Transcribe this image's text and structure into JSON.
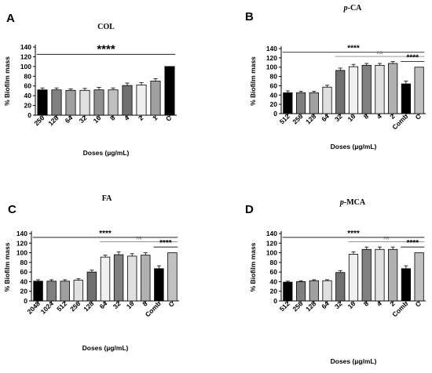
{
  "chart_data": [
    {
      "panel": "A",
      "type": "bar",
      "title": "COL",
      "xlabel": "Doses (µg/mL)",
      "ylabel": "% Biofilm mass",
      "ylim": [
        0,
        140
      ],
      "yticks": [
        "0",
        "20",
        "40",
        "60",
        "80",
        "100",
        "120",
        "140"
      ],
      "categories": [
        "256",
        "128",
        "64",
        "32",
        "16",
        "8",
        "4",
        "2",
        "1",
        "C"
      ],
      "values": [
        52,
        52,
        51,
        51,
        52,
        52,
        61,
        62,
        70,
        100
      ],
      "errors": [
        4,
        4,
        3,
        4,
        5,
        4,
        5,
        5,
        5,
        0
      ],
      "colors": [
        "#000000",
        "#808080",
        "#a0a0a0",
        "#e0e0e0",
        "#909090",
        "#c0c0c0",
        "#707070",
        "#f0f0f0",
        "#a0a0a0",
        "#000000"
      ],
      "significance": [
        {
          "label": "****",
          "from": 0,
          "to": 9,
          "y": 125,
          "size": "large"
        }
      ]
    },
    {
      "panel": "B",
      "type": "bar",
      "title": "p-CA",
      "xlabel": "Doses (µg/mL)",
      "ylabel": "% Biofilm mass",
      "ylim": [
        0,
        140
      ],
      "yticks": [
        "0",
        "20",
        "40",
        "60",
        "80",
        "100",
        "120",
        "140"
      ],
      "categories": [
        "512",
        "256",
        "128",
        "64",
        "32",
        "16",
        "8",
        "4",
        "2",
        "Comb",
        "C"
      ],
      "values": [
        45,
        45,
        45,
        57,
        93,
        101,
        104,
        104,
        108,
        64,
        100
      ],
      "errors": [
        4,
        3,
        3,
        4,
        5,
        5,
        4,
        4,
        4,
        6,
        0
      ],
      "colors": [
        "#000000",
        "#808080",
        "#a0a0a0",
        "#e0e0e0",
        "#707070",
        "#f0f0f0",
        "#808080",
        "#e0e0e0",
        "#b0b0b0",
        "#000000",
        "#c0c0c0"
      ],
      "significance": [
        {
          "label": "****",
          "from": 0,
          "to": 10,
          "y": 132,
          "size": "small"
        },
        {
          "label": "ns",
          "from": 4,
          "to": 10,
          "y": 123,
          "size": "ns"
        },
        {
          "label": "****",
          "from": 9,
          "to": 10,
          "y": 112,
          "size": "small"
        }
      ]
    },
    {
      "panel": "C",
      "type": "bar",
      "title": "FA",
      "xlabel": "Doses (µg/mL)",
      "ylabel": "% Biofilm mass",
      "ylim": [
        0,
        140
      ],
      "yticks": [
        "0",
        "20",
        "40",
        "60",
        "80",
        "100",
        "120",
        "140"
      ],
      "categories": [
        "2048",
        "1024",
        "512",
        "256",
        "128",
        "64",
        "32",
        "16",
        "8",
        "Comb",
        "C"
      ],
      "values": [
        41,
        41,
        41,
        43,
        60,
        91,
        96,
        93,
        95,
        67,
        100
      ],
      "errors": [
        3,
        3,
        3,
        3,
        4,
        4,
        6,
        5,
        5,
        6,
        0
      ],
      "colors": [
        "#000000",
        "#808080",
        "#a0a0a0",
        "#e0e0e0",
        "#707070",
        "#f0f0f0",
        "#808080",
        "#e0e0e0",
        "#b0b0b0",
        "#000000",
        "#c0c0c0"
      ],
      "significance": [
        {
          "label": "****",
          "from": 0,
          "to": 10,
          "y": 132,
          "size": "small"
        },
        {
          "label": "ns",
          "from": 5,
          "to": 10,
          "y": 123,
          "size": "ns"
        },
        {
          "label": "****",
          "from": 9,
          "to": 10,
          "y": 112,
          "size": "small"
        }
      ]
    },
    {
      "panel": "D",
      "type": "bar",
      "title": "p-MCA",
      "xlabel": "Doses (µg/mL)",
      "ylabel": "% Biofilm mass",
      "ylim": [
        0,
        140
      ],
      "yticks": [
        "0",
        "20",
        "40",
        "60",
        "80",
        "100",
        "120",
        "140"
      ],
      "categories": [
        "512",
        "256",
        "128",
        "64",
        "32",
        "16",
        "8",
        "4",
        "2",
        "Comb",
        "C"
      ],
      "values": [
        39,
        40,
        42,
        42,
        59,
        97,
        107,
        107,
        107,
        67,
        100
      ],
      "errors": [
        2,
        2,
        2,
        2,
        4,
        5,
        5,
        5,
        5,
        6,
        0
      ],
      "colors": [
        "#000000",
        "#808080",
        "#a0a0a0",
        "#e0e0e0",
        "#707070",
        "#f0f0f0",
        "#808080",
        "#e0e0e0",
        "#b0b0b0",
        "#000000",
        "#c0c0c0"
      ],
      "significance": [
        {
          "label": "****",
          "from": 0,
          "to": 10,
          "y": 132,
          "size": "small"
        },
        {
          "label": "ns",
          "from": 5,
          "to": 10,
          "y": 123,
          "size": "ns"
        },
        {
          "label": "****",
          "from": 9,
          "to": 10,
          "y": 112,
          "size": "small"
        }
      ]
    }
  ]
}
